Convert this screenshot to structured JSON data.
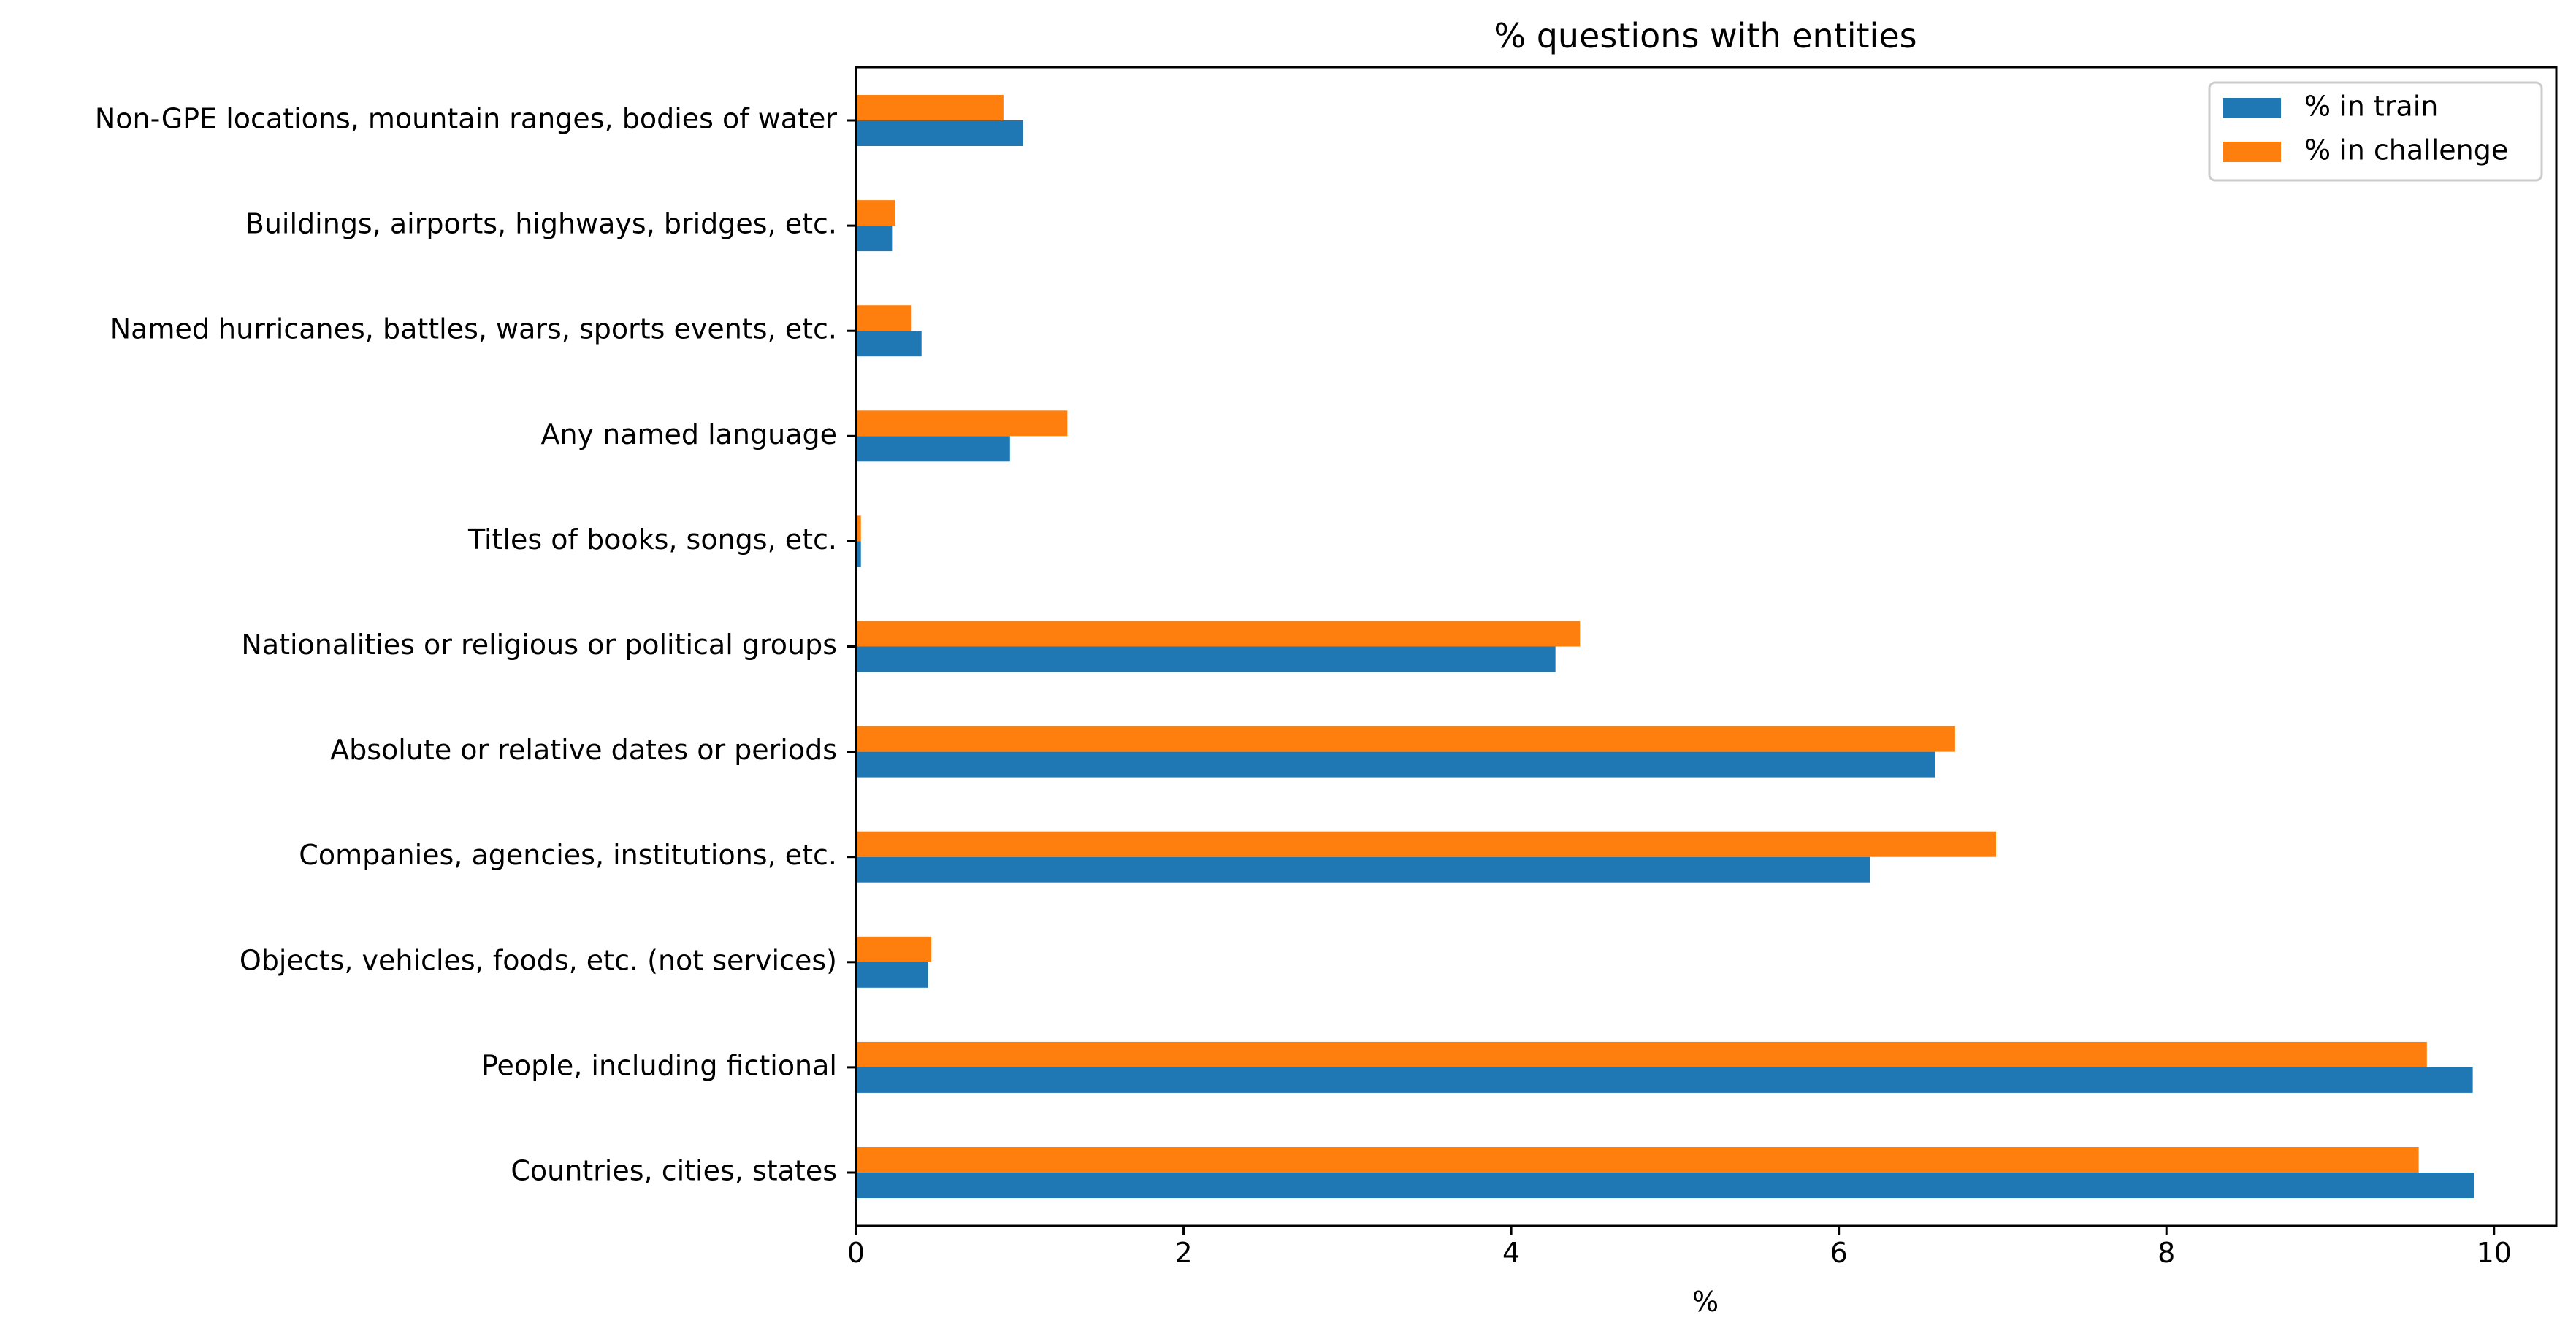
{
  "chart_data": {
    "type": "bar",
    "orientation": "horizontal",
    "title": "% questions with entities",
    "xlabel": "%",
    "ylabel": "",
    "xlim": [
      0,
      10.38
    ],
    "xticks": [
      0,
      2,
      4,
      6,
      8,
      10
    ],
    "grid": false,
    "legend_position": "top-right",
    "categories": [
      "Countries, cities, states",
      "People, including fictional",
      "Objects, vehicles, foods, etc. (not services)",
      "Companies, agencies, institutions, etc.",
      "Absolute or relative dates or periods",
      "Nationalities or religious or political groups",
      "Titles of books, songs, etc.",
      "Any named language",
      "Named hurricanes, battles, wars, sports events, etc.",
      "Buildings, airports, highways, bridges, etc.",
      "Non-GPE locations, mountain ranges, bodies of water"
    ],
    "series": [
      {
        "name": "% in train",
        "color": "#1f77b4",
        "values": [
          9.88,
          9.87,
          0.44,
          6.19,
          6.59,
          4.27,
          0.03,
          0.94,
          0.4,
          0.22,
          1.02
        ]
      },
      {
        "name": "% in challenge",
        "color": "#ff7f0e",
        "values": [
          9.54,
          9.59,
          0.46,
          6.96,
          6.71,
          4.42,
          0.03,
          1.29,
          0.34,
          0.24,
          0.9
        ]
      }
    ]
  }
}
